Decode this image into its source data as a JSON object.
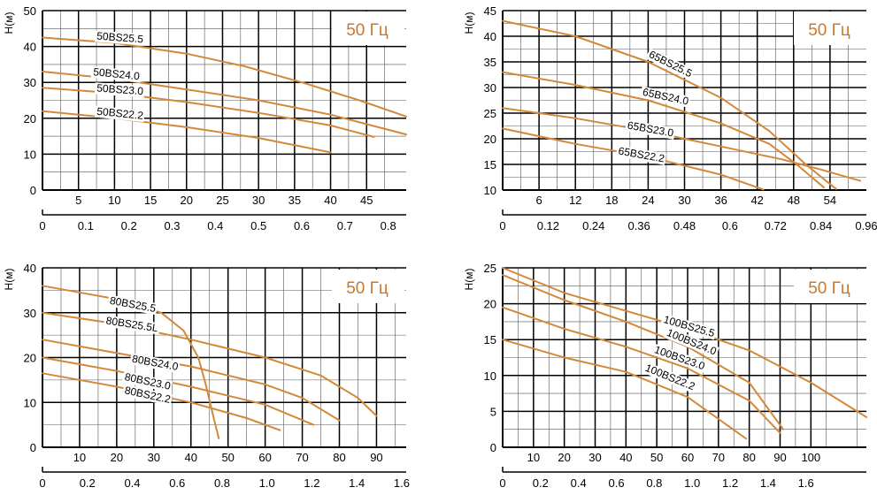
{
  "colors": {
    "curve": "#d4883a",
    "grid_major": "#000000",
    "grid_minor": "#555555",
    "freq_text": "#c8782e"
  },
  "chart_data": [
    {
      "type": "line",
      "freq_label": "50 Гц",
      "ylabel": "H(м)",
      "ylim": [
        0,
        50
      ],
      "yticks": [
        0,
        10,
        20,
        30,
        40,
        50
      ],
      "xlim": [
        0,
        50.5
      ],
      "xticks_top": [
        "5",
        "10",
        "15",
        "20",
        "25",
        "30",
        "35",
        "40",
        "45"
      ],
      "xticks_top_values": [
        5,
        10,
        15,
        20,
        25,
        30,
        35,
        40,
        45
      ],
      "xticks_bottom": [
        "0",
        "0.1",
        "0.2",
        "0.3",
        "0.4",
        "0.5",
        "0.6",
        "0.7",
        "0.8"
      ],
      "xticks_bottom_values": [
        0,
        6,
        12,
        18,
        24,
        30,
        36,
        42,
        48
      ],
      "series": [
        {
          "name": "50BS25.5",
          "x": [
            0,
            10,
            20,
            28,
            36,
            44,
            50.5
          ],
          "y": [
            42.5,
            41,
            38,
            34.5,
            30,
            25,
            20.5
          ],
          "label_at": [
            7.5,
            42
          ]
        },
        {
          "name": "50BS24.0",
          "x": [
            0,
            10,
            20,
            30,
            40,
            50.5
          ],
          "y": [
            33,
            31,
            28,
            25,
            21,
            15.5
          ],
          "label_at": [
            7,
            32
          ]
        },
        {
          "name": "50BS23.0",
          "x": [
            0,
            10,
            20,
            30,
            40,
            46
          ],
          "y": [
            28.5,
            27,
            24.5,
            21.5,
            18,
            14.8
          ],
          "label_at": [
            7.5,
            27.5
          ]
        },
        {
          "name": "50BS22.2",
          "x": [
            0,
            10,
            20,
            30,
            40
          ],
          "y": [
            22,
            20,
            17.5,
            14.5,
            10.5
          ],
          "label_at": [
            7.5,
            21
          ]
        }
      ]
    },
    {
      "type": "line",
      "freq_label": "50 Гц",
      "ylabel": "H(м)",
      "ylim": [
        10,
        45
      ],
      "yticks": [
        10,
        15,
        20,
        25,
        30,
        35,
        40,
        45
      ],
      "xlim": [
        0,
        60
      ],
      "xticks_top": [
        "6",
        "12",
        "18",
        "24",
        "30",
        "36",
        "42",
        "48",
        "54"
      ],
      "xticks_top_values": [
        6,
        12,
        18,
        24,
        30,
        36,
        42,
        48,
        54
      ],
      "xticks_bottom": [
        "0",
        "0.12",
        "0.24",
        "0.36",
        "0.48",
        "0.6",
        "0.72",
        "0.84",
        "0.96"
      ],
      "xticks_bottom_values": [
        0,
        7.5,
        15,
        22.5,
        30,
        37.5,
        45,
        52.5,
        60
      ],
      "series": [
        {
          "name": "65BS25.5",
          "x": [
            0,
            12,
            24,
            36,
            44,
            50,
            55
          ],
          "y": [
            43,
            40,
            35,
            28,
            21.5,
            15,
            10.2
          ],
          "label_at": [
            24,
            36
          ]
        },
        {
          "name": "65BS24.0",
          "x": [
            0,
            12,
            24,
            36,
            44,
            48.5,
            53
          ],
          "y": [
            33,
            30.5,
            27.5,
            23,
            19,
            15,
            10.5
          ],
          "label_at": [
            23,
            28.5
          ]
        },
        {
          "name": "65BS23.0",
          "x": [
            0,
            12,
            24,
            36,
            46,
            52.5,
            59
          ],
          "y": [
            26,
            24,
            21.5,
            18.5,
            16,
            14,
            11.8
          ],
          "label_at": [
            20.5,
            22
          ]
        },
        {
          "name": "65BS22.2",
          "x": [
            0,
            12,
            24,
            36,
            43
          ],
          "y": [
            22,
            19,
            16.5,
            13,
            10.1
          ],
          "label_at": [
            19,
            17
          ]
        }
      ]
    },
    {
      "type": "line",
      "freq_label": "50 Гц",
      "ylabel": "H(м)",
      "ylim": [
        0,
        40
      ],
      "yticks": [
        0,
        10,
        20,
        30,
        40
      ],
      "xlim": [
        0,
        98
      ],
      "xticks_top": [
        "10",
        "20",
        "30",
        "40",
        "50",
        "60",
        "70",
        "80",
        "90"
      ],
      "xticks_top_values": [
        10,
        20,
        30,
        40,
        50,
        60,
        70,
        80,
        90
      ],
      "xticks_bottom": [
        "0",
        "0.2",
        "0.4",
        "0.6",
        "0.8",
        "1.0",
        "1.2",
        "1.4",
        "1.6"
      ],
      "xticks_bottom_values": [
        0,
        12.1,
        24.2,
        36.3,
        48.4,
        60.5,
        72.6,
        84.7,
        96.8
      ],
      "series": [
        {
          "name": "80BS25.5",
          "x": [
            0,
            20,
            32,
            38,
            42,
            44,
            46,
            47.5
          ],
          "y": [
            36,
            33,
            30,
            26,
            20,
            14,
            7,
            2
          ],
          "label_at": [
            18,
            32
          ]
        },
        {
          "name": "80BS25.5L",
          "x": [
            0,
            20,
            40,
            60,
            75,
            85,
            90
          ],
          "y": [
            30,
            27.5,
            24,
            20,
            16,
            11,
            7
          ],
          "label_at": [
            17,
            27.5
          ]
        },
        {
          "name": "80BS24.0",
          "x": [
            0,
            20,
            40,
            60,
            70,
            80
          ],
          "y": [
            24,
            21,
            18,
            14,
            11,
            6
          ],
          "label_at": [
            24,
            19
          ]
        },
        {
          "name": "80BS23.0",
          "x": [
            0,
            20,
            40,
            60,
            73
          ],
          "y": [
            20,
            17,
            13.5,
            9.5,
            5
          ],
          "label_at": [
            22,
            15
          ]
        },
        {
          "name": "80BS22.2",
          "x": [
            0,
            20,
            40,
            55,
            64
          ],
          "y": [
            16.5,
            13.5,
            10,
            6.5,
            3.8
          ],
          "label_at": [
            22,
            12
          ]
        }
      ]
    },
    {
      "type": "line",
      "freq_label": "50 Гц",
      "ylabel": "H(м)",
      "ylim": [
        0,
        25
      ],
      "yticks": [
        0,
        5,
        10,
        15,
        20,
        25
      ],
      "xlim": [
        0,
        118
      ],
      "xticks_top": [
        "10",
        "20",
        "30",
        "40",
        "50",
        "60",
        "70",
        "80",
        "90",
        "100"
      ],
      "xticks_top_values": [
        10,
        20,
        30,
        40,
        50,
        60,
        70,
        80,
        90,
        100
      ],
      "xticks_bottom": [
        "0",
        "0.2",
        "0.4",
        "0.6",
        "0.8",
        "1.0",
        "1.2",
        "1.4",
        "1.6"
      ],
      "xticks_bottom_values": [
        0,
        12.3,
        24.6,
        36.9,
        49.2,
        61.5,
        73.8,
        86.1,
        98.4
      ],
      "series": [
        {
          "name": "100BS25.5",
          "x": [
            0,
            20,
            40,
            60,
            80,
            100,
            118
          ],
          "y": [
            25,
            21.5,
            19,
            16.5,
            13.5,
            9,
            4.2
          ],
          "label_at": [
            52,
            17.4
          ]
        },
        {
          "name": "100BS24.0",
          "x": [
            0,
            20,
            40,
            60,
            80,
            91
          ],
          "y": [
            24,
            20.5,
            17.5,
            14,
            9,
            2.5
          ],
          "label_at": [
            53,
            15.6
          ]
        },
        {
          "name": "100BS23.0",
          "x": [
            0,
            20,
            40,
            60,
            80,
            90
          ],
          "y": [
            19.5,
            16.5,
            14,
            11,
            6.5,
            2
          ],
          "label_at": [
            49,
            13.2
          ]
        },
        {
          "name": "100BS22.2",
          "x": [
            0,
            20,
            40,
            60,
            79
          ],
          "y": [
            15,
            12.5,
            10.5,
            7,
            1.2
          ],
          "label_at": [
            46,
            10.7
          ]
        }
      ]
    }
  ]
}
